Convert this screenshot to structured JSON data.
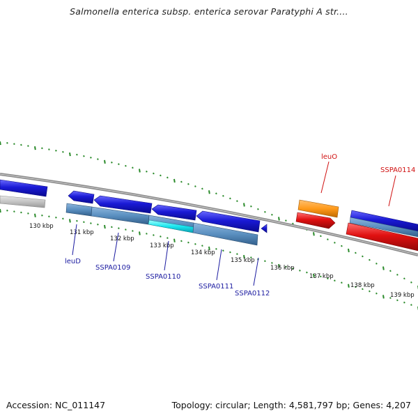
{
  "title": "Salmonella enterica subsp. enterica serovar Paratyphi A str....",
  "footer": {
    "accession": "Accession: NC_011147",
    "summary": "Topology: circular; Length: 4,581,797 bp; Genes: 4,207"
  },
  "colors": {
    "backbone": "#7a7a7a",
    "tick": "#2a8a2a",
    "gene_blue": "#1a1ad6",
    "gene_red": "#e01010",
    "gene_orange": "#ff9a1a",
    "gene_grey": "#bdbdbd",
    "gene_steel": "#5a8fc0",
    "gene_cyan": "#19e6ee",
    "label_blue": "#1a1aa0",
    "label_red": "#d01010"
  },
  "scale": {
    "unit": "kbp",
    "ticks": [
      "130 kbp",
      "131 kbp",
      "132 kbp",
      "133 kbp",
      "134 kbp",
      "135 kbp",
      "136 kbp",
      "137 kbp",
      "138 kbp",
      "139 kbp"
    ]
  },
  "gene_labels": [
    {
      "name": "leuD",
      "strand": "reverse"
    },
    {
      "name": "SSPA0109",
      "strand": "reverse"
    },
    {
      "name": "SSPA0110",
      "strand": "reverse"
    },
    {
      "name": "SSPA0111",
      "strand": "reverse"
    },
    {
      "name": "SSPA0112",
      "strand": "reverse"
    },
    {
      "name": "leuO",
      "strand": "forward"
    },
    {
      "name": "SSPA0114",
      "strand": "forward"
    }
  ]
}
